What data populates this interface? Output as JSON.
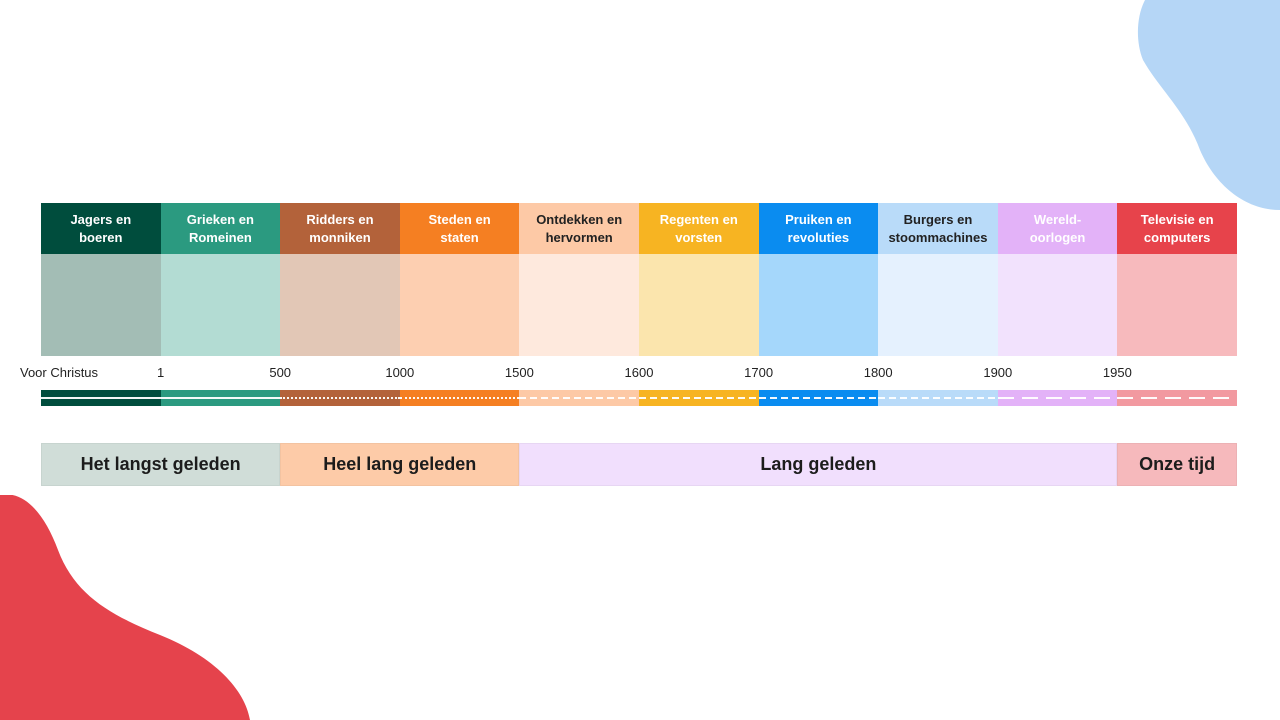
{
  "eras": [
    {
      "label": "Jagers en\nboeren",
      "head_color": "#004d3d",
      "body_color": "#a3bdb5",
      "text_color": "#ffffff"
    },
    {
      "label": "Grieken en\nRomeinen",
      "head_color": "#2b9a80",
      "body_color": "#b3dcd3",
      "text_color": "#ffffff"
    },
    {
      "label": "Ridders en\nmonniken",
      "head_color": "#b3623a",
      "body_color": "#e2c7b6",
      "text_color": "#ffffff"
    },
    {
      "label": "Steden en\nstaten",
      "head_color": "#f57f22",
      "body_color": "#fdcfb1",
      "text_color": "#ffffff"
    },
    {
      "label": "Ontdekken en\nhervormen",
      "head_color": "#fdc9a6",
      "body_color": "#fee9dd",
      "text_color": "#222222"
    },
    {
      "label": "Regenten en\nvorsten",
      "head_color": "#f7b422",
      "body_color": "#fbe5ad",
      "text_color": "#ffffff"
    },
    {
      "label": "Pruiken en\nrevoluties",
      "head_color": "#0a8cf0",
      "body_color": "#a5d7fb",
      "text_color": "#ffffff"
    },
    {
      "label": "Burgers en\nstoommachines",
      "head_color": "#b9dbf9",
      "body_color": "#e5f1fe",
      "text_color": "#222222"
    },
    {
      "label": "Wereld-\noorlogen",
      "head_color": "#e3b2f8",
      "body_color": "#f2e2fd",
      "text_color": "#ffffff"
    },
    {
      "label": "Televisie en\ncomputers",
      "head_color": "#e7434b",
      "body_color": "#f7babd",
      "text_color": "#ffffff"
    }
  ],
  "years": [
    "Voor Christus",
    "1",
    "500",
    "1000",
    "1500",
    "1600",
    "1700",
    "1800",
    "1900",
    "1950"
  ],
  "bar_segments": [
    {
      "color": "#004d3d",
      "line": "solid"
    },
    {
      "color": "#2b9a80",
      "line": "solid"
    },
    {
      "color": "#b3623a",
      "line": "dotted"
    },
    {
      "color": "#f57f22",
      "line": "dotted"
    },
    {
      "color": "#fdc9a6",
      "line": "dashed"
    },
    {
      "color": "#f7b422",
      "line": "dashed"
    },
    {
      "color": "#0a8cf0",
      "line": "dashed"
    },
    {
      "color": "#b9dbf9",
      "line": "dashed"
    },
    {
      "color": "#e3b2f8",
      "line": "longdash"
    },
    {
      "color": "#f299a0",
      "line": "longdash"
    }
  ],
  "periods": [
    {
      "label": "Het langst geleden",
      "span": 2,
      "color": "#d0ddd8"
    },
    {
      "label": "Heel lang geleden",
      "span": 2,
      "color": "#fdcba8"
    },
    {
      "label": "Lang geleden",
      "span": 5,
      "color": "#f1dffd"
    },
    {
      "label": "Onze tijd",
      "span": 1,
      "color": "#f6b9bc"
    }
  ],
  "decor": {
    "top_right_color": "#b5d6f6",
    "bottom_left_color": "#e5434c"
  }
}
